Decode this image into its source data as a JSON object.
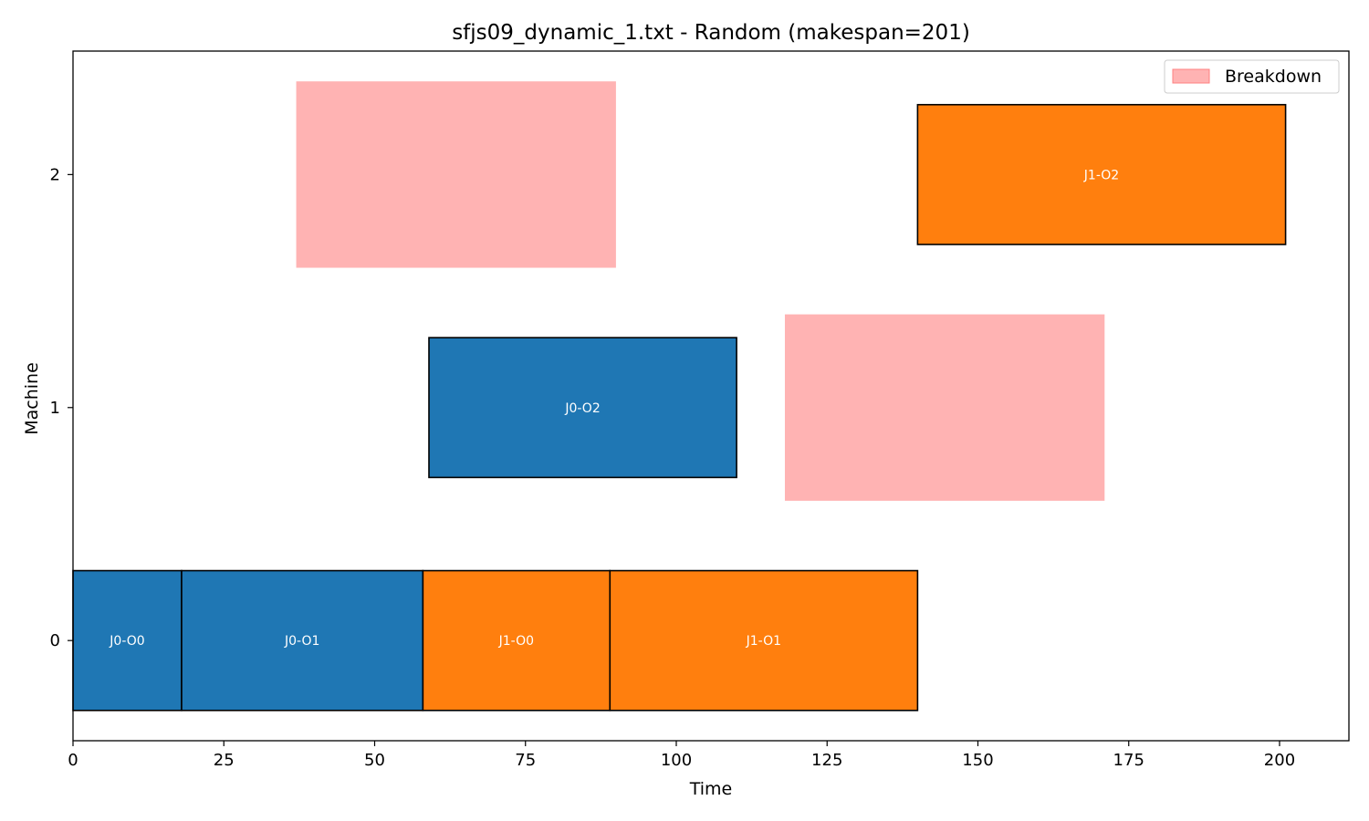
{
  "chart_data": {
    "type": "gantt",
    "title": "sfjs09_dynamic_1.txt - Random (makespan=201)",
    "xlabel": "Time",
    "ylabel": "Machine",
    "xlim": [
      0,
      211.5
    ],
    "ylim": [
      -0.43,
      2.53
    ],
    "xticks": [
      0,
      25,
      50,
      75,
      100,
      125,
      150,
      175,
      200
    ],
    "yticks": [
      0,
      1,
      2
    ],
    "legend": {
      "location": "top-right",
      "entries": [
        {
          "label": "Breakdown",
          "color": "#ffb3b3"
        }
      ]
    },
    "colors": {
      "J0": "#1f77b4",
      "J1": "#ff7f0e",
      "breakdown": "#ffb3b3"
    },
    "operations": [
      {
        "label": "J0-O0",
        "job": "J0",
        "machine": 0,
        "start": 0,
        "end": 18
      },
      {
        "label": "J0-O1",
        "job": "J0",
        "machine": 0,
        "start": 18,
        "end": 58
      },
      {
        "label": "J1-O0",
        "job": "J1",
        "machine": 0,
        "start": 58,
        "end": 89
      },
      {
        "label": "J1-O1",
        "job": "J1",
        "machine": 0,
        "start": 89,
        "end": 140
      },
      {
        "label": "J0-O2",
        "job": "J0",
        "machine": 1,
        "start": 59,
        "end": 110
      },
      {
        "label": "J1-O2",
        "job": "J1",
        "machine": 2,
        "start": 140,
        "end": 201
      }
    ],
    "breakdowns": [
      {
        "machine": 2,
        "start": 37,
        "end": 90
      },
      {
        "machine": 1,
        "start": 118,
        "end": 171
      }
    ]
  }
}
